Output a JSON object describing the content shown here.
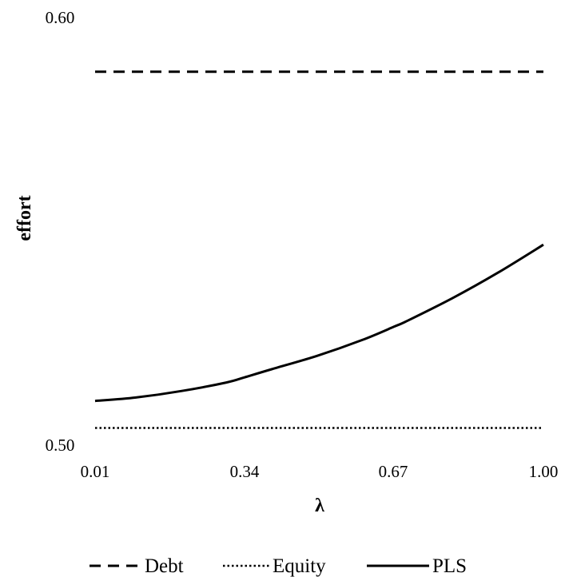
{
  "chart_data": {
    "type": "line",
    "title": "",
    "xlabel": "λ",
    "ylabel": "effort",
    "xlim": [
      0.01,
      1.0
    ],
    "ylim": [
      0.5,
      0.6
    ],
    "x_ticks": [
      "0.01",
      "0.34",
      "0.67",
      "1.00"
    ],
    "y_ticks": [
      "0.50",
      "0.60"
    ],
    "grid": false,
    "legend_position": "bottom",
    "series": [
      {
        "name": "Debt",
        "style": "dashed",
        "color": "#000000",
        "x": [
          0.01,
          1.0
        ],
        "y": [
          0.587,
          0.587
        ]
      },
      {
        "name": "Equity",
        "style": "dotted",
        "color": "#000000",
        "x": [
          0.01,
          1.0
        ],
        "y": [
          0.504,
          0.504
        ]
      },
      {
        "name": "PLS",
        "style": "solid",
        "color": "#000000",
        "x": [
          0.01,
          0.1,
          0.2,
          0.3,
          0.34,
          0.4,
          0.5,
          0.6,
          0.67,
          0.7,
          0.8,
          0.9,
          1.0
        ],
        "y": [
          0.5103,
          0.5111,
          0.5126,
          0.5146,
          0.5158,
          0.5177,
          0.5208,
          0.5245,
          0.5276,
          0.529,
          0.5343,
          0.5402,
          0.5467
        ]
      }
    ]
  }
}
